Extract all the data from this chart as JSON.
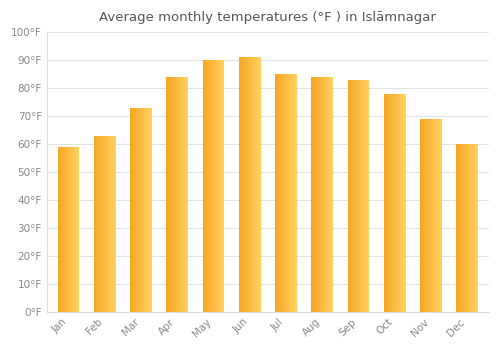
{
  "title": "Average monthly temperatures (°F ) in Islāmnagar",
  "months": [
    "Jan",
    "Feb",
    "Mar",
    "Apr",
    "May",
    "Jun",
    "Jul",
    "Aug",
    "Sep",
    "Oct",
    "Nov",
    "Dec"
  ],
  "values": [
    59,
    63,
    73,
    84,
    90,
    91,
    85,
    84,
    83,
    78,
    69,
    60
  ],
  "bar_color_left": "#F5A623",
  "bar_color_right": "#FFD060",
  "background_color": "#FFFFFF",
  "grid_color": "#DDDDDD",
  "text_color": "#888888",
  "title_color": "#555555",
  "ylim": [
    0,
    100
  ],
  "yticks": [
    0,
    10,
    20,
    30,
    40,
    50,
    60,
    70,
    80,
    90,
    100
  ],
  "ytick_labels": [
    "0°F",
    "10°F",
    "20°F",
    "30°F",
    "40°F",
    "50°F",
    "60°F",
    "70°F",
    "80°F",
    "90°F",
    "100°F"
  ],
  "bar_width": 0.6,
  "n_gradient_steps": 50
}
